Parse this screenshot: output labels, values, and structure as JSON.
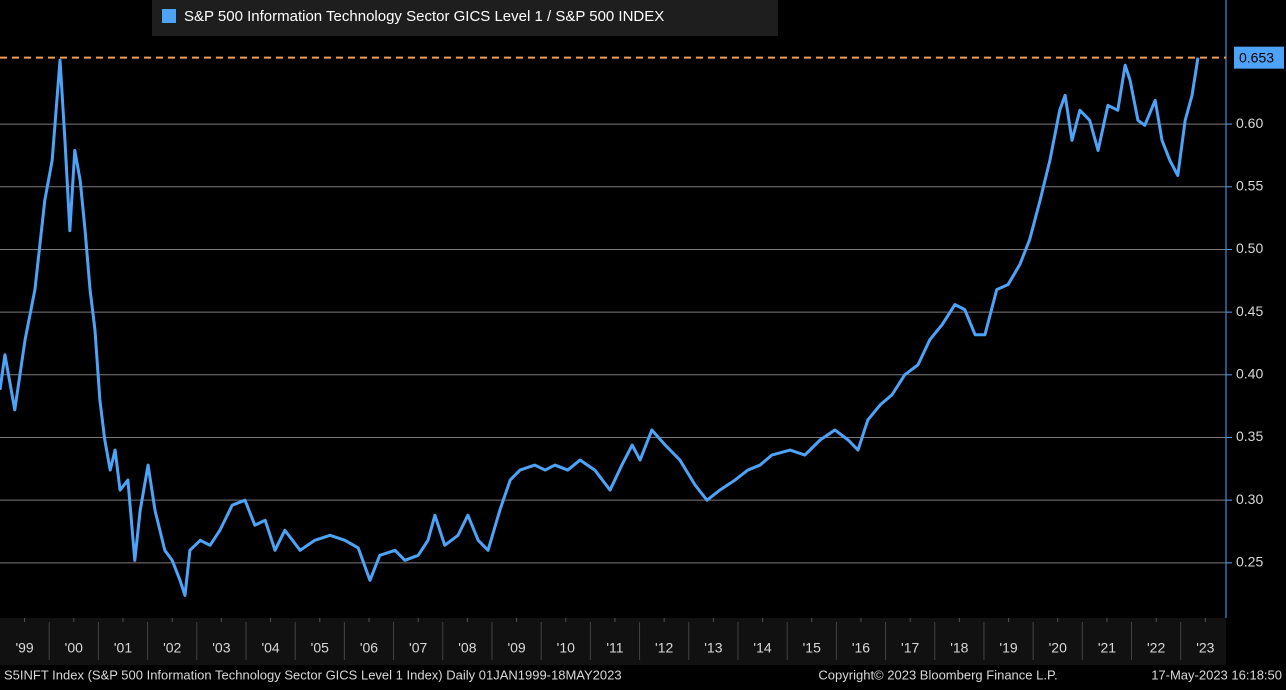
{
  "chart_data": {
    "type": "line",
    "series": [
      {
        "name": "S&P 500 Information Technology Sector GICS Level 1 / S&P 500 INDEX",
        "color": "#4da3f7",
        "values": [
          0.388,
          0.416,
          0.372,
          0.428,
          0.468,
          0.539,
          0.571,
          0.651,
          0.587,
          0.515,
          0.579,
          0.555,
          0.515,
          0.468,
          0.436,
          0.38,
          0.348,
          0.324,
          0.34,
          0.308,
          0.316,
          0.252,
          0.292,
          0.328,
          0.292,
          0.26,
          0.252,
          0.236,
          0.224,
          0.26,
          0.268,
          0.264,
          0.276,
          0.296,
          0.3,
          0.28,
          0.284,
          0.26,
          0.276,
          0.26,
          0.268,
          0.272,
          0.268,
          0.262,
          0.236,
          0.256,
          0.26,
          0.252,
          0.256,
          0.268,
          0.288,
          0.264,
          0.272,
          0.288,
          0.268,
          0.26,
          0.292,
          0.316,
          0.324,
          0.328,
          0.324,
          0.328,
          0.324,
          0.332,
          0.324,
          0.308,
          0.328,
          0.344,
          0.332,
          0.356,
          0.344,
          0.332,
          0.312,
          0.3,
          0.308,
          0.316,
          0.324,
          0.328,
          0.336,
          0.34,
          0.336,
          0.348,
          0.356,
          0.348,
          0.34,
          0.364,
          0.376,
          0.384,
          0.4,
          0.408,
          0.428,
          0.44,
          0.456,
          0.452,
          0.432,
          0.432,
          0.468,
          0.472,
          0.488,
          0.508,
          0.539,
          0.571,
          0.611,
          0.623,
          0.587,
          0.611,
          0.603,
          0.579,
          0.615,
          0.611,
          0.647,
          0.635,
          0.603,
          0.599,
          0.619,
          0.587,
          0.571,
          0.559,
          0.603,
          0.623,
          0.653
        ]
      }
    ],
    "x": [
      1999.0,
      1999.1,
      1999.3,
      1999.51,
      1999.71,
      1999.91,
      2000.06,
      2000.22,
      2000.32,
      2000.42,
      2000.52,
      2000.63,
      2000.73,
      2000.83,
      2000.93,
      2001.03,
      2001.13,
      2001.24,
      2001.34,
      2001.44,
      2001.6,
      2001.74,
      2001.85,
      2002.01,
      2002.15,
      2002.35,
      2002.5,
      2002.66,
      2002.76,
      2002.86,
      2003.07,
      2003.27,
      2003.47,
      2003.72,
      2003.98,
      2004.18,
      2004.39,
      2004.59,
      2004.79,
      2005.1,
      2005.4,
      2005.71,
      2006.01,
      2006.28,
      2006.52,
      2006.72,
      2007.03,
      2007.23,
      2007.5,
      2007.7,
      2007.84,
      2008.04,
      2008.31,
      2008.51,
      2008.72,
      2008.92,
      2009.16,
      2009.37,
      2009.57,
      2009.87,
      2010.08,
      2010.28,
      2010.54,
      2010.79,
      2011.09,
      2011.4,
      2011.64,
      2011.85,
      2012.01,
      2012.25,
      2012.52,
      2012.82,
      2013.13,
      2013.37,
      2013.63,
      2013.94,
      2014.2,
      2014.45,
      2014.69,
      2015.06,
      2015.36,
      2015.67,
      2015.97,
      2016.24,
      2016.44,
      2016.64,
      2016.89,
      2017.13,
      2017.39,
      2017.66,
      2017.9,
      2018.15,
      2018.41,
      2018.61,
      2018.82,
      2019.02,
      2019.26,
      2019.49,
      2019.73,
      2019.93,
      2020.14,
      2020.34,
      2020.54,
      2020.65,
      2020.79,
      2020.95,
      2021.15,
      2021.32,
      2021.52,
      2021.72,
      2021.87,
      2021.97,
      2022.13,
      2022.27,
      2022.48,
      2022.62,
      2022.78,
      2022.94,
      2023.09,
      2023.23,
      2023.35
    ],
    "xlim": [
      1999,
      2023.92
    ],
    "xticks": [
      {
        "value": 1999.5,
        "label": "'99"
      },
      {
        "value": 2000.5,
        "label": "'00"
      },
      {
        "value": 2001.5,
        "label": "'01"
      },
      {
        "value": 2002.5,
        "label": "'02"
      },
      {
        "value": 2003.5,
        "label": "'03"
      },
      {
        "value": 2004.5,
        "label": "'04"
      },
      {
        "value": 2005.5,
        "label": "'05"
      },
      {
        "value": 2006.5,
        "label": "'06"
      },
      {
        "value": 2007.5,
        "label": "'07"
      },
      {
        "value": 2008.5,
        "label": "'08"
      },
      {
        "value": 2009.5,
        "label": "'09"
      },
      {
        "value": 2010.5,
        "label": "'10"
      },
      {
        "value": 2011.5,
        "label": "'11"
      },
      {
        "value": 2012.5,
        "label": "'12"
      },
      {
        "value": 2013.5,
        "label": "'13"
      },
      {
        "value": 2014.5,
        "label": "'14"
      },
      {
        "value": 2015.5,
        "label": "'15"
      },
      {
        "value": 2016.5,
        "label": "'16"
      },
      {
        "value": 2017.5,
        "label": "'17"
      },
      {
        "value": 2018.5,
        "label": "'18"
      },
      {
        "value": 2019.5,
        "label": "'19"
      },
      {
        "value": 2020.5,
        "label": "'20"
      },
      {
        "value": 2021.5,
        "label": "'21"
      },
      {
        "value": 2022.5,
        "label": "'22"
      },
      {
        "value": 2023.5,
        "label": "'23"
      }
    ],
    "ylim": [
      0.206,
      0.699
    ],
    "yticks": [
      {
        "value": 0.25,
        "label": "0.25"
      },
      {
        "value": 0.3,
        "label": "0.30"
      },
      {
        "value": 0.35,
        "label": "0.35"
      },
      {
        "value": 0.4,
        "label": "0.40"
      },
      {
        "value": 0.45,
        "label": "0.45"
      },
      {
        "value": 0.5,
        "label": "0.50"
      },
      {
        "value": 0.55,
        "label": "0.55"
      },
      {
        "value": 0.6,
        "label": "0.60"
      }
    ],
    "y_axis_side": "right",
    "grid": true,
    "legend": "top-left",
    "reference_line": {
      "value": 0.653,
      "color": "#f0a050"
    },
    "footer": {
      "left": "S5INFT Index (S&P 500 Information Technology Sector GICS Level 1 Index)  Daily 01JAN1999-18MAY2023",
      "center": "Copyright© 2023 Bloomberg Finance L.P.",
      "right": "17-May-2023 16:18:50"
    }
  }
}
